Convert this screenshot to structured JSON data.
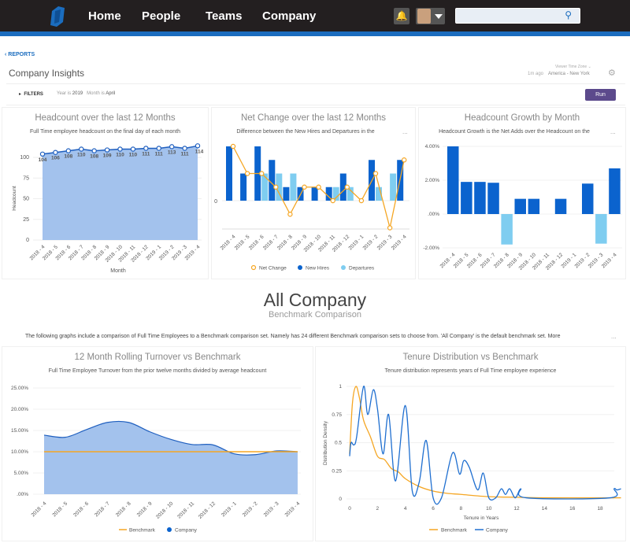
{
  "nav": {
    "items": [
      "Home",
      "People",
      "Teams",
      "Company"
    ],
    "search_value": "",
    "icons": {
      "logo": "namely-logo",
      "bell": "bell-icon",
      "search": "search-icon"
    }
  },
  "header": {
    "back_link": "‹ REPORTS",
    "title": "Company Insights",
    "timezone_label": "Viewer Time Zone ⌄",
    "updated": "1m ago",
    "timezone": "America - New York"
  },
  "filters": {
    "label": "FILTERS",
    "year_prefix": "Year is",
    "year": "2019",
    "month_prefix": "Month is",
    "month": "April",
    "run": "Run"
  },
  "panels": [
    {
      "title": "Headcount over the last 12 Months",
      "subtitle": "Full Time employee headcount on the final day of each month"
    },
    {
      "title": "Net Change over the last 12 Months",
      "subtitle": "Difference between the New Hires and Departures in the",
      "more": "..."
    },
    {
      "title": "Headcount Growth by Month",
      "subtitle": "Headcount Growth is the Net Adds over the Headcount on the",
      "more": "..."
    },
    {
      "title": "12 Month Rolling Turnover vs Benchmark",
      "subtitle": "Full Time Employee Turnover from the prior twelve months divided by average headcount"
    },
    {
      "title": "Tenure Distribution vs Benchmark",
      "subtitle": "Tenure distribution represents years of Full Time employee experience"
    }
  ],
  "section": {
    "title": "All Company",
    "subtitle": "Benchmark Comparison",
    "description": "The following graphs include a comparison of Full Time Employees to a Benchmark comparison set. Namely has 24 different Benchmark comparison sets to choose from. 'All Company' is the default benchmark set. More",
    "more": "..."
  },
  "colors": {
    "nav_bg": "#231f20",
    "accent": "#1b6dbf",
    "run": "#5c4a8c",
    "dark_bar": "#0b63ce",
    "light_bar": "#7fcdf0",
    "orange": "#f5a623",
    "area": "#a3c2ed"
  },
  "chart_data": [
    {
      "type": "area",
      "categories": [
        "2018 - 4",
        "2018 - 5",
        "2018 - 6",
        "2018 - 7",
        "2018 - 8",
        "2018 - 9",
        "2018 - 10",
        "2018 - 11",
        "2018 - 12",
        "2019 - 1",
        "2019 - 2",
        "2019 - 3",
        "2019 - 4"
      ],
      "values": [
        104,
        106,
        108,
        110,
        108,
        109,
        110,
        110,
        111,
        111,
        113,
        111,
        114
      ],
      "xlabel": "Month",
      "ylabel": "Headcount",
      "ylim": [
        0,
        125
      ],
      "yticks": [
        "0",
        "25",
        "50",
        "75",
        "100"
      ],
      "grid": true
    },
    {
      "type": "bar+line",
      "categories": [
        "2018 - 4",
        "2018 - 5",
        "2018 - 6",
        "2018 - 7",
        "2018 - 8",
        "2018 - 9",
        "2018 - 10",
        "2018 - 11",
        "2018 - 12",
        "2019 - 1",
        "2019 - 2",
        "2019 - 3",
        "2019 - 4"
      ],
      "series": [
        {
          "name": "Net Change",
          "type": "line",
          "values": [
            4,
            2,
            2,
            1,
            -1,
            1,
            1,
            0,
            1,
            0,
            2,
            -2,
            3
          ]
        },
        {
          "name": "New Hires",
          "type": "bar",
          "values": [
            4,
            2,
            4,
            3,
            1,
            1,
            1,
            1,
            2,
            0,
            3,
            0,
            3
          ]
        },
        {
          "name": "Departures",
          "type": "bar",
          "values": [
            0,
            0,
            2,
            2,
            2,
            0,
            0,
            1,
            1,
            0,
            1,
            2,
            0
          ]
        }
      ],
      "ylim": [
        -2,
        4
      ],
      "yticks": [
        "0"
      ],
      "legend": "bottom"
    },
    {
      "type": "bar",
      "categories": [
        "2018 - 4",
        "2018 - 5",
        "2018 - 6",
        "2018 - 7",
        "2018 - 8",
        "2018 - 9",
        "2018 - 10",
        "2018 - 11",
        "2018 - 12",
        "2019 - 1",
        "2019 - 2",
        "2019 - 3",
        "2019 - 4"
      ],
      "values": [
        4.0,
        1.9,
        1.9,
        1.85,
        -1.8,
        0.9,
        0.9,
        0,
        0.9,
        0,
        1.8,
        -1.75,
        2.7
      ],
      "ylim": [
        -2,
        4
      ],
      "yticks": [
        {
          "value": 4,
          "label": "4.00%"
        },
        {
          "value": 2,
          "label": "2.00%"
        },
        {
          "value": 0,
          "label": ".00%"
        },
        {
          "value": -2,
          "label": "-2.00%"
        }
      ]
    },
    {
      "type": "area",
      "categories": [
        "2018 - 4",
        "2018 - 5",
        "2018 - 6",
        "2018 - 7",
        "2018 - 8",
        "2018 - 9",
        "2018 - 10",
        "2018 - 11",
        "2018 - 12",
        "2019 - 1",
        "2019 - 2",
        "2019 - 3",
        "2019 - 4"
      ],
      "series": [
        {
          "name": "Benchmark",
          "type": "line",
          "values": [
            10,
            10,
            10,
            10,
            10,
            10,
            10,
            10,
            10,
            10,
            10,
            10,
            10
          ]
        },
        {
          "name": "Company",
          "type": "area",
          "values": [
            13.9,
            13.4,
            15.2,
            16.9,
            16.9,
            14.7,
            12.9,
            11.7,
            11.6,
            9.5,
            9.3,
            10.2,
            10.0
          ]
        }
      ],
      "ylim": [
        0,
        25
      ],
      "yticks": [
        ".00%",
        "5.00%",
        "10.00%",
        "15.00%",
        "20.00%",
        "25.00%"
      ],
      "legend": "bottom"
    },
    {
      "type": "line",
      "xlabel": "Tenure in Years",
      "ylabel": "Distribution Density",
      "xlim": [
        0,
        19.5
      ],
      "ylim": [
        0,
        1
      ],
      "xticks": [
        "0",
        "2",
        "4",
        "6",
        "8",
        "10",
        "12",
        "14",
        "16",
        "18"
      ],
      "yticks": [
        "0",
        "0.25",
        "0.5",
        "0.75",
        "1"
      ],
      "legend": "bottom",
      "series": [
        {
          "name": "Benchmark",
          "x": [
            0,
            0.2,
            0.45,
            0.7,
            1,
            1.5,
            2,
            2.5,
            3,
            3.5,
            4,
            5,
            6,
            7,
            8,
            10,
            12,
            14,
            19.5
          ],
          "y": [
            0.4,
            0.85,
            1,
            0.9,
            0.7,
            0.55,
            0.38,
            0.35,
            0.27,
            0.24,
            0.18,
            0.11,
            0.07,
            0.05,
            0.04,
            0.02,
            0.015,
            0.01,
            0.01
          ]
        },
        {
          "name": "Company",
          "x": [
            0,
            0.1,
            0.3,
            0.5,
            1,
            1.3,
            1.7,
            2,
            2.4,
            2.8,
            3.3,
            4,
            4.5,
            5,
            5.5,
            6,
            6.6,
            7.4,
            7.9,
            8.2,
            8.6,
            9.2,
            9.6,
            10,
            10.5,
            10.9,
            11.2,
            11.5,
            11.9,
            12.3,
            12.7,
            18.7,
            19,
            19.2,
            19.5
          ],
          "y": [
            0.38,
            0.5,
            0.48,
            0.55,
            1,
            0.75,
            0.97,
            0.8,
            0.4,
            0.75,
            0.16,
            0.83,
            0.07,
            0.15,
            0.52,
            0.01,
            0.01,
            0.41,
            0.22,
            0.34,
            0.28,
            0.08,
            0.23,
            0.01,
            0.01,
            0.09,
            0.04,
            0.09,
            0.01,
            0.09,
            0.01,
            0.01,
            0.09,
            0.08,
            0.09
          ]
        }
      ]
    }
  ]
}
